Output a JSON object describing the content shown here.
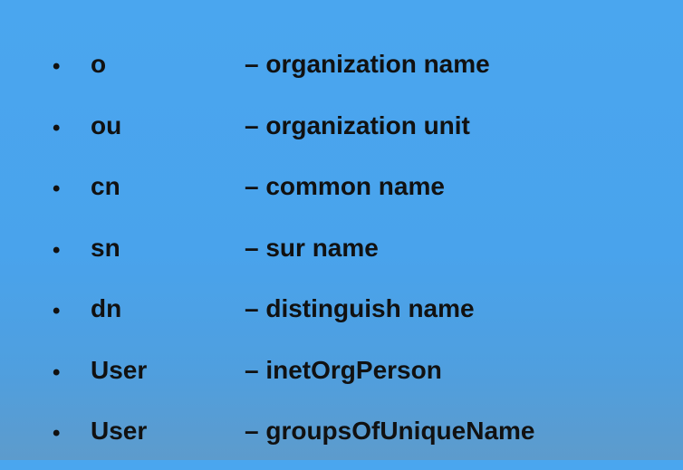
{
  "slide": {
    "bullet_glyph": "•",
    "items": [
      {
        "term": "o",
        "description": "– organization name"
      },
      {
        "term": "ou",
        "description": "– organization unit"
      },
      {
        "term": "cn",
        "description": "– common name"
      },
      {
        "term": "sn",
        "description": "– sur name"
      },
      {
        "term": "dn",
        "description": "– distinguish name"
      },
      {
        "term": "User",
        "description": "– inetOrgPerson"
      },
      {
        "term": "User",
        "description": "– groupsOfUniqueName"
      }
    ]
  }
}
